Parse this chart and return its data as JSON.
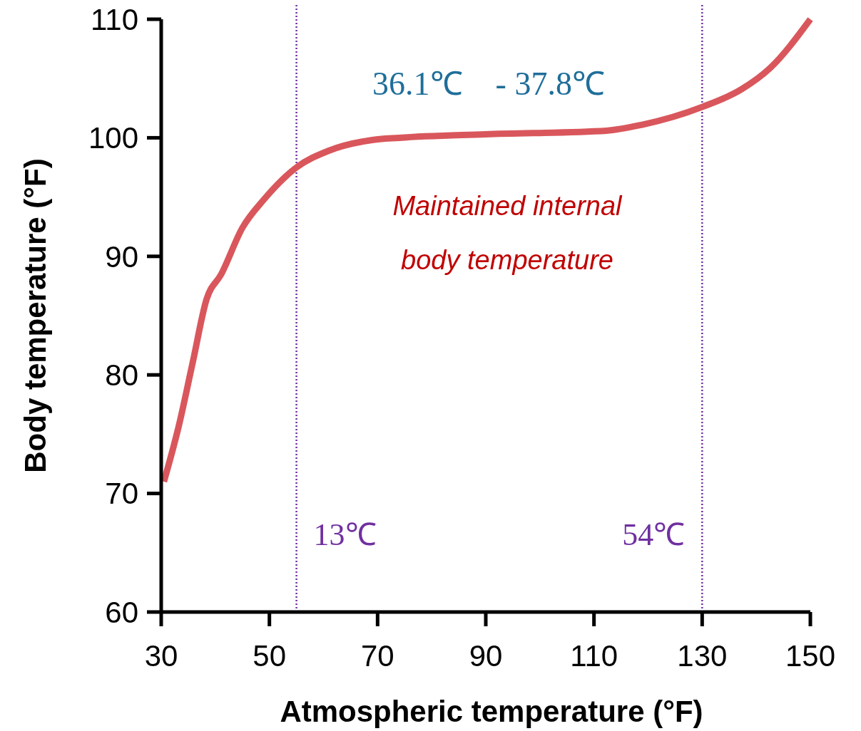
{
  "chart_data": {
    "type": "line",
    "xlabel": "Atmospheric temperature (°F)",
    "ylabel": "Body temperature (°F)",
    "xlim": [
      30,
      150
    ],
    "xticks": [
      30,
      50,
      70,
      90,
      110,
      130,
      150
    ],
    "ylim": [
      60,
      110
    ],
    "yticks": [
      60,
      70,
      80,
      90,
      100,
      110
    ],
    "grid": false,
    "marker": "none",
    "line_style": "solid",
    "series": [
      {
        "color": "#d9575c",
        "x": [
          30.5,
          33.2,
          35.8,
          38.4,
          41.1,
          45,
          49,
          55,
          60.9,
          68.8,
          74,
          89.9,
          112.3,
          118.9,
          130,
          137.3,
          142.6,
          150
        ],
        "values": [
          71,
          75.6,
          81,
          86.4,
          88.5,
          92.4,
          94.8,
          97.5,
          98.9,
          99.8,
          100,
          100.3,
          100.6,
          101.1,
          102.6,
          104.1,
          105.9,
          110
        ]
      }
    ],
    "ref_lines": [
      {
        "axis": "x",
        "value": 55,
        "label": "13℃",
        "color": "#7030a0",
        "line_style": "dotted"
      },
      {
        "axis": "x",
        "value": 130,
        "label": "54℃",
        "color": "#7030a0",
        "line_style": "dotted"
      }
    ],
    "annotations": [
      "36.1℃    - 37.8℃",
      "Maintained internal body temperature"
    ]
  }
}
